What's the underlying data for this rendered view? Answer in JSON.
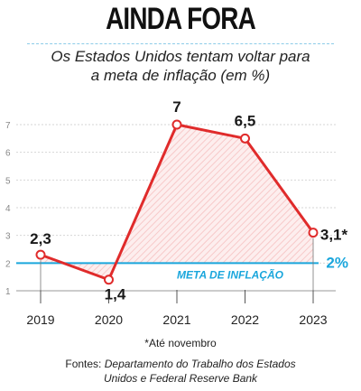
{
  "title": "AINDA FORA",
  "subtitle": {
    "line1": "Os Estados Unidos tentam voltar para",
    "line2": "a meta de inflação (em %)"
  },
  "colors": {
    "line": "#e02b2b",
    "area_fill": "#f7c9c9",
    "target": "#1aa6dc",
    "axis": "#999999",
    "text": "#222222"
  },
  "chart_data": {
    "type": "line",
    "x": [
      "2019",
      "2020",
      "2021",
      "2022",
      "2023"
    ],
    "values": [
      2.3,
      1.4,
      7,
      6.5,
      3.1
    ],
    "data_labels": [
      "2,3",
      "1,4",
      "7",
      "6,5",
      "3,1*"
    ],
    "ylim": [
      1,
      7
    ],
    "y_ticks": [
      "1",
      "2",
      "3",
      "4",
      "5",
      "6",
      "7"
    ],
    "target": {
      "value": 2,
      "label": "META DE INFLAÇÃO",
      "value_label": "2%"
    },
    "grid": "horizontal dashed",
    "shaded_area": "between line and target"
  },
  "footnote": "*Até novembro",
  "sources": {
    "prefix": "Fontes:",
    "line1": "Departamento do Trabalho dos Estados",
    "line2": "Unidos e Federal Reserve Bank"
  }
}
